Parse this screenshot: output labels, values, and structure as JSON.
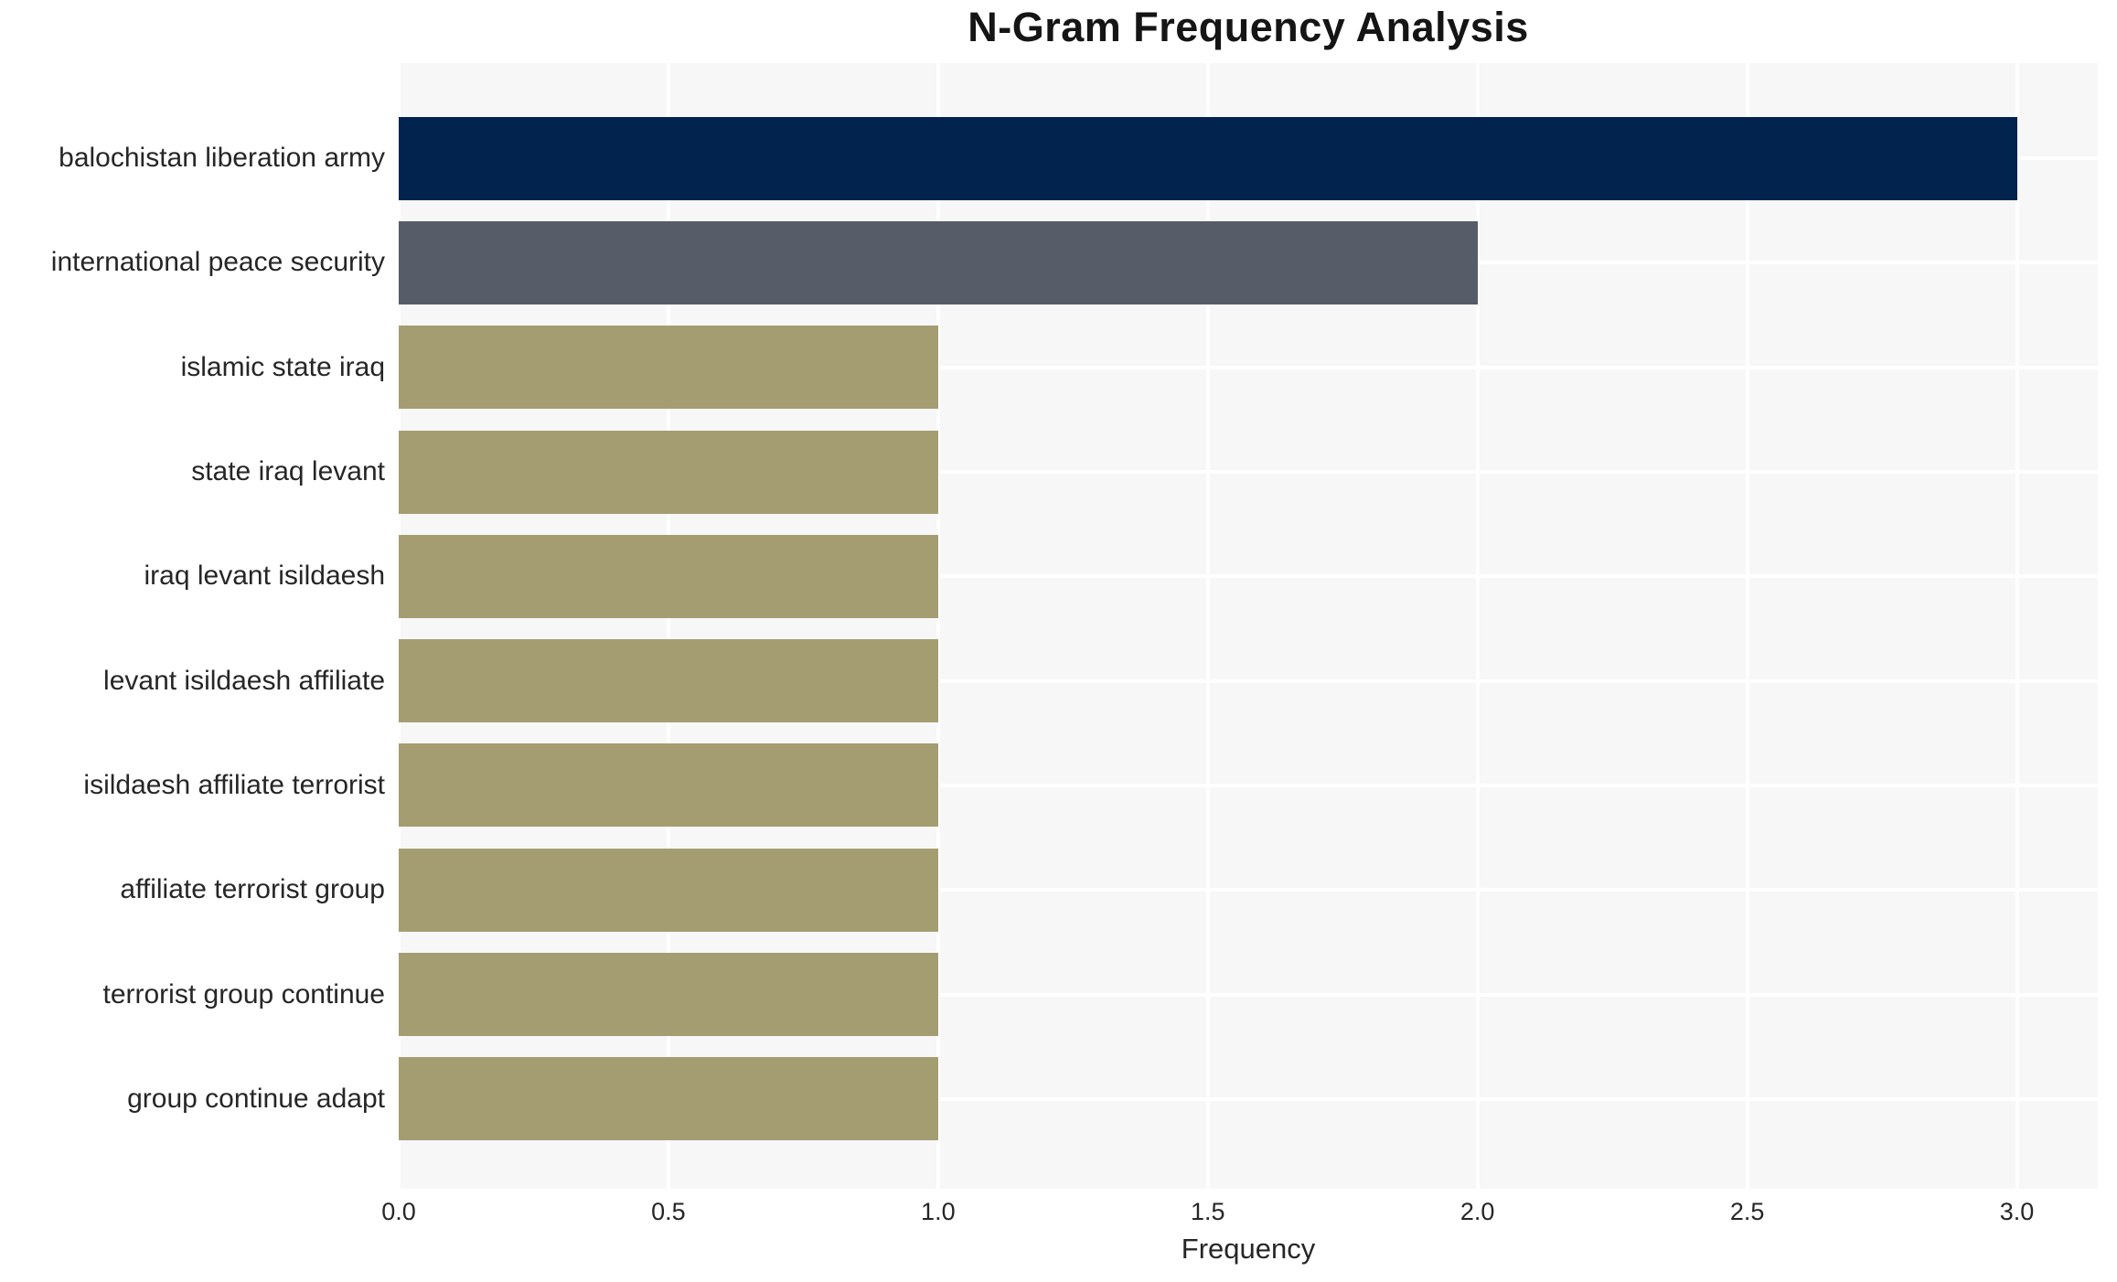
{
  "title": "N-Gram Frequency Analysis",
  "chart_data": {
    "type": "bar",
    "orientation": "horizontal",
    "title": "N-Gram Frequency Analysis",
    "xlabel": "Frequency",
    "ylabel": "",
    "categories": [
      "balochistan liberation army",
      "international peace security",
      "islamic state iraq",
      "state iraq levant",
      "iraq levant isildaesh",
      "levant isildaesh affiliate",
      "isildaesh affiliate terrorist",
      "affiliate terrorist group",
      "terrorist group continue",
      "group continue adapt"
    ],
    "values": [
      3,
      2,
      1,
      1,
      1,
      1,
      1,
      1,
      1,
      1
    ],
    "bar_colors": [
      "#01234d",
      "#565c68",
      "#a59d72",
      "#a59d72",
      "#a59d72",
      "#a59d72",
      "#a59d72",
      "#a59d72",
      "#a59d72",
      "#a59d72"
    ],
    "xlim": [
      0,
      3.15
    ],
    "xticks": [
      0.0,
      0.5,
      1.0,
      1.5,
      2.0,
      2.5,
      3.0
    ],
    "xtick_labels": [
      "0.0",
      "0.5",
      "1.0",
      "1.5",
      "2.0",
      "2.5",
      "3.0"
    ],
    "grid": true,
    "legend": "none",
    "plot_background": "#f7f7f7",
    "grid_color": "#ffffff",
    "text_color": "#262626"
  }
}
